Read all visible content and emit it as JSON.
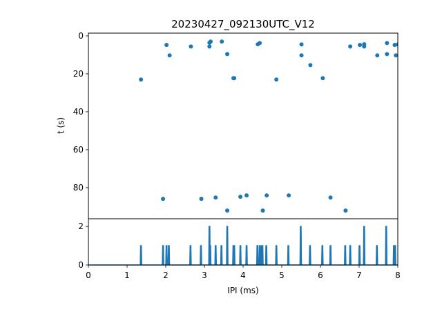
{
  "chart_data": [
    {
      "type": "scatter",
      "title": "20230427_092130UTC_V12",
      "xlabel": "",
      "ylabel": "t (s)",
      "xlim": [
        0,
        8
      ],
      "ylim": [
        96.4,
        -1.45
      ],
      "y_inverted": true,
      "yticks": [
        "0",
        "20",
        "40",
        "60",
        "80"
      ],
      "color": "#1f77b4",
      "points": [
        [
          1.36,
          23.0
        ],
        [
          2.02,
          4.8
        ],
        [
          2.1,
          10.3
        ],
        [
          2.65,
          5.6
        ],
        [
          3.13,
          3.6
        ],
        [
          3.16,
          3.0
        ],
        [
          3.13,
          5.6
        ],
        [
          3.45,
          3.0
        ],
        [
          3.59,
          9.6
        ],
        [
          3.75,
          22.3
        ],
        [
          3.77,
          22.3
        ],
        [
          4.38,
          4.4
        ],
        [
          4.43,
          3.8
        ],
        [
          4.86,
          23.0
        ],
        [
          5.51,
          4.5
        ],
        [
          5.51,
          10.3
        ],
        [
          5.74,
          15.4
        ],
        [
          6.06,
          22.3
        ],
        [
          6.77,
          5.6
        ],
        [
          7.02,
          4.8
        ],
        [
          7.13,
          4.4
        ],
        [
          7.13,
          5.6
        ],
        [
          7.47,
          10.3
        ],
        [
          7.72,
          3.8
        ],
        [
          7.72,
          9.6
        ],
        [
          7.92,
          4.8
        ],
        [
          7.95,
          10.3
        ],
        [
          8.0,
          4.5
        ],
        [
          1.93,
          85.9
        ],
        [
          2.92,
          85.9
        ],
        [
          3.29,
          85.2
        ],
        [
          3.59,
          92.1
        ],
        [
          3.93,
          84.8
        ],
        [
          4.09,
          84.1
        ],
        [
          4.51,
          92.1
        ],
        [
          4.61,
          84.1
        ],
        [
          5.18,
          84.1
        ],
        [
          6.26,
          85.2
        ],
        [
          6.65,
          92.1
        ]
      ]
    },
    {
      "type": "line",
      "title": "",
      "xlabel": "IPI (ms)",
      "ylabel": "",
      "xlim": [
        0,
        8
      ],
      "ylim": [
        0,
        2.4
      ],
      "xticks": [
        "0",
        "1",
        "2",
        "3",
        "4",
        "5",
        "6",
        "7",
        "8"
      ],
      "yticks": [
        "0",
        "2"
      ],
      "color": "#1f77b4",
      "spikes": [
        [
          1.36,
          1
        ],
        [
          1.93,
          1
        ],
        [
          2.02,
          1
        ],
        [
          2.08,
          1
        ],
        [
          2.64,
          1
        ],
        [
          2.91,
          1
        ],
        [
          3.13,
          2
        ],
        [
          3.15,
          1
        ],
        [
          3.29,
          1
        ],
        [
          3.44,
          1
        ],
        [
          3.59,
          2
        ],
        [
          3.75,
          1
        ],
        [
          3.77,
          1
        ],
        [
          3.93,
          1
        ],
        [
          4.09,
          1
        ],
        [
          4.37,
          1
        ],
        [
          4.43,
          1
        ],
        [
          4.48,
          1
        ],
        [
          4.5,
          1
        ],
        [
          4.6,
          1
        ],
        [
          4.86,
          1
        ],
        [
          5.17,
          1
        ],
        [
          5.49,
          2
        ],
        [
          5.73,
          1
        ],
        [
          6.05,
          1
        ],
        [
          6.26,
          1
        ],
        [
          6.64,
          1
        ],
        [
          6.77,
          1
        ],
        [
          7.01,
          1
        ],
        [
          7.13,
          2
        ],
        [
          7.46,
          1
        ],
        [
          7.7,
          2
        ],
        [
          7.9,
          1
        ],
        [
          7.93,
          1
        ]
      ]
    }
  ]
}
